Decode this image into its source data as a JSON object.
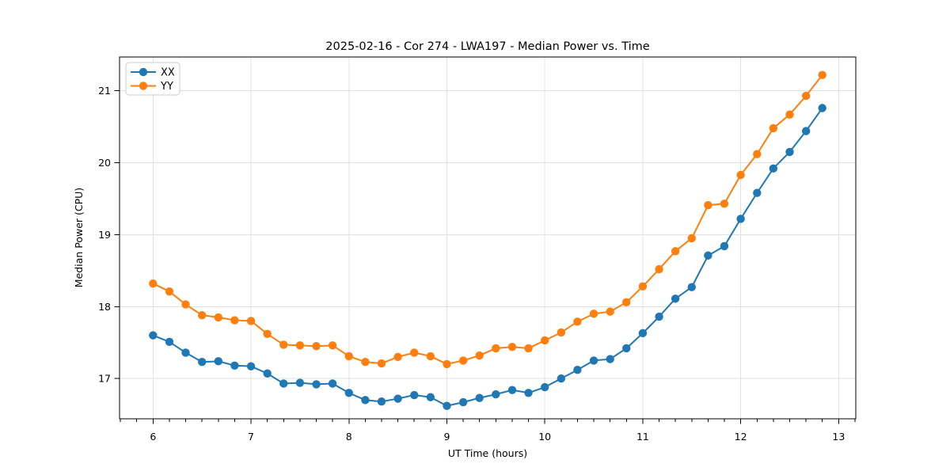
{
  "figure": {
    "title": "2025-02-16 - Cor 274 - LWA197 - Median Power vs. Time"
  },
  "chart_data": {
    "type": "line",
    "title": "2025-02-16 - Cor 274 - LWA197 - Median Power vs. Time",
    "xlabel": "UT Time (hours)",
    "ylabel": "Median Power (CPU)",
    "xlim": [
      5.658,
      13.175
    ],
    "ylim": [
      16.44,
      21.47
    ],
    "xticks": [
      6,
      7,
      8,
      9,
      10,
      11,
      12,
      13
    ],
    "yticks": [
      17,
      18,
      19,
      20,
      21
    ],
    "x_minor_tick_step": 0.166667,
    "grid": true,
    "legend_position": "upper left",
    "x": [
      6.0,
      6.167,
      6.333,
      6.5,
      6.667,
      6.833,
      7.0,
      7.167,
      7.333,
      7.5,
      7.667,
      7.833,
      8.0,
      8.167,
      8.333,
      8.5,
      8.667,
      8.833,
      9.0,
      9.167,
      9.333,
      9.5,
      9.667,
      9.833,
      10.0,
      10.167,
      10.333,
      10.5,
      10.667,
      10.833,
      11.0,
      11.167,
      11.333,
      11.5,
      11.667,
      11.833,
      12.0,
      12.167,
      12.333,
      12.5,
      12.667,
      12.833
    ],
    "series": [
      {
        "name": "XX",
        "color": "#1f77b4",
        "marker": "circle",
        "values": [
          17.6,
          17.51,
          17.36,
          17.23,
          17.24,
          17.18,
          17.17,
          17.07,
          16.93,
          16.94,
          16.92,
          16.93,
          16.8,
          16.7,
          16.68,
          16.72,
          16.77,
          16.74,
          16.62,
          16.67,
          16.73,
          16.78,
          16.84,
          16.8,
          16.88,
          17.0,
          17.12,
          17.25,
          17.27,
          17.42,
          17.63,
          17.86,
          18.11,
          18.27,
          18.71,
          18.84,
          19.22,
          19.58,
          19.92,
          20.15,
          20.44,
          20.76
        ]
      },
      {
        "name": "YY",
        "color": "#ff7f0e",
        "marker": "circle",
        "values": [
          18.32,
          18.21,
          18.03,
          17.88,
          17.85,
          17.81,
          17.8,
          17.62,
          17.47,
          17.46,
          17.45,
          17.46,
          17.31,
          17.23,
          17.21,
          17.3,
          17.36,
          17.31,
          17.2,
          17.25,
          17.32,
          17.42,
          17.44,
          17.42,
          17.53,
          17.64,
          17.79,
          17.9,
          17.93,
          18.06,
          18.28,
          18.52,
          18.77,
          18.95,
          19.41,
          19.43,
          19.83,
          20.12,
          20.48,
          20.67,
          20.93,
          21.22
        ]
      }
    ]
  },
  "style": {
    "grid_color": "#e0e0e0",
    "spine_color": "#000000",
    "tick_color": "#000000",
    "legend_border_color": "#cccccc",
    "background_color": "#ffffff"
  }
}
